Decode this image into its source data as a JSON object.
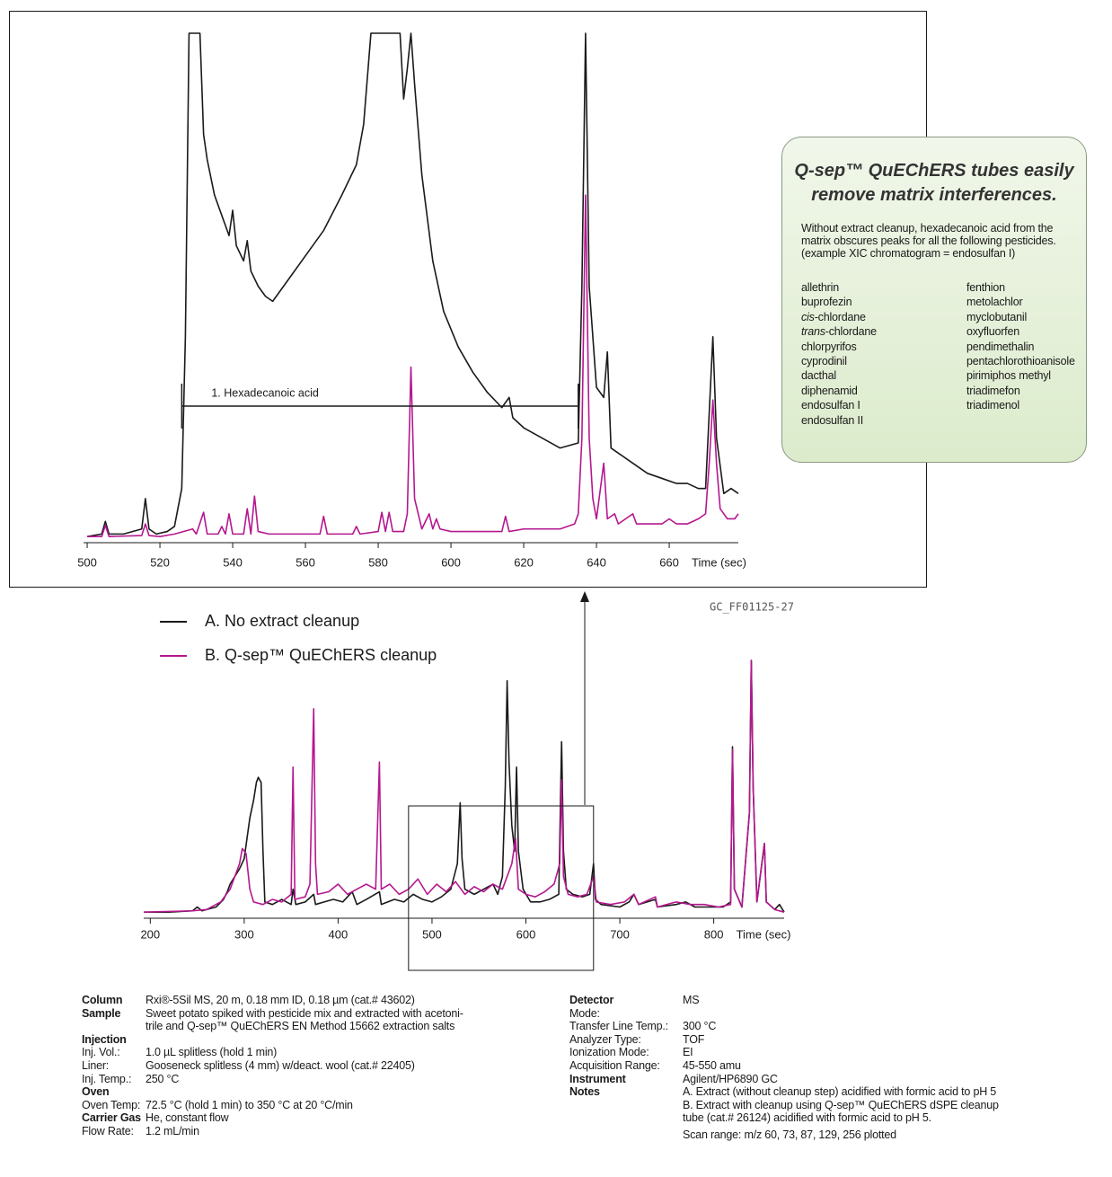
{
  "chart_data": [
    {
      "type": "line",
      "xlabel": "Time (sec)",
      "xlim": [
        499,
        679
      ],
      "xticks": [
        500,
        520,
        540,
        560,
        580,
        600,
        620,
        640,
        660
      ],
      "ylim": [
        0,
        100
      ],
      "annotation": {
        "text": "1. Hexadecanoic acid",
        "from": 526,
        "to": 635
      },
      "series": [
        {
          "name": "A. No extract cleanup",
          "color": "#1a1a1a",
          "x": [
            500,
            504,
            505,
            506,
            510,
            515,
            516,
            517,
            519,
            522,
            524,
            526,
            527,
            528,
            531,
            532,
            533,
            535,
            537,
            539,
            540,
            541,
            543,
            544,
            545,
            547,
            549,
            551,
            553,
            556,
            560,
            565,
            570,
            574,
            576,
            578,
            586,
            587,
            588,
            589,
            590,
            592,
            595,
            598,
            602,
            606,
            610,
            614,
            616,
            617,
            620,
            625,
            630,
            635,
            636,
            637,
            638,
            640,
            642,
            643,
            644,
            646,
            650,
            654,
            658,
            662,
            665,
            668,
            670,
            672,
            673,
            675,
            677,
            679
          ],
          "values": [
            0.5,
            1,
            3.5,
            1,
            1,
            2,
            8,
            2,
            1,
            1.5,
            2.5,
            10,
            40,
            100,
            100,
            80,
            75,
            68,
            64,
            60,
            65,
            58,
            55,
            59,
            53,
            50,
            48,
            47,
            49,
            52,
            56,
            61,
            68,
            74,
            82,
            100,
            100,
            87,
            93,
            100,
            90,
            72,
            55,
            45,
            38,
            33,
            29,
            26,
            28,
            24,
            22,
            20,
            18,
            19,
            50,
            100,
            50,
            30,
            28,
            37,
            18,
            17,
            15,
            13,
            12,
            11,
            11,
            10,
            10,
            40,
            20,
            9,
            10,
            9
          ]
        },
        {
          "name": "B. Q-sep™ QuEChERS cleanup",
          "color": "#b5178f",
          "x": [
            500,
            504,
            505,
            506,
            515,
            516,
            517,
            520,
            524,
            529,
            530,
            532,
            533,
            536,
            537,
            538,
            539,
            540,
            543,
            544,
            545,
            546,
            547,
            550,
            555,
            560,
            564,
            565,
            566,
            570,
            573,
            574,
            575,
            580,
            581,
            582,
            583,
            584,
            587,
            588,
            589,
            590,
            592,
            594,
            595,
            596,
            597,
            600,
            605,
            610,
            614,
            615,
            616,
            620,
            625,
            630,
            634,
            635,
            636,
            637,
            638,
            639,
            640,
            642,
            643,
            645,
            646,
            648,
            650,
            651,
            655,
            658,
            660,
            662,
            665,
            668,
            670,
            671,
            672,
            673,
            674,
            676,
            678,
            679
          ],
          "values": [
            0.5,
            0.5,
            2.7,
            0.5,
            0.7,
            3,
            0.7,
            0.5,
            1,
            2,
            1,
            5.3,
            1,
            1,
            2.5,
            1,
            5,
            1,
            1,
            6,
            1,
            8.5,
            1.5,
            1,
            1,
            1,
            1,
            4.5,
            1,
            1,
            1,
            2.5,
            1,
            1.5,
            5.3,
            1.5,
            5.3,
            1.5,
            1.5,
            5,
            34,
            8,
            2,
            5,
            2,
            4,
            2,
            1.5,
            1.5,
            1.5,
            1.5,
            4.5,
            1.5,
            2,
            2,
            2,
            3,
            5,
            20,
            68,
            20,
            8,
            4,
            15,
            4,
            5,
            3,
            4,
            5,
            3,
            3,
            3,
            4,
            3,
            3,
            4,
            5,
            15,
            27.5,
            15,
            6,
            4,
            4,
            5
          ]
        }
      ]
    },
    {
      "type": "line",
      "xlabel": "Time (sec)",
      "xlim": [
        193,
        875
      ],
      "xticks": [
        200,
        300,
        400,
        500,
        600,
        700,
        800
      ],
      "ylim": [
        0,
        100
      ],
      "zoom_box": [
        475,
        672
      ],
      "legend": "top-left",
      "series": [
        {
          "name": "A. No extract cleanup",
          "color": "#1a1a1a",
          "x": [
            193,
            220,
            245,
            250,
            255,
            270,
            278,
            282,
            285,
            290,
            295,
            300,
            303,
            306,
            310,
            313,
            315,
            318,
            320,
            322,
            330,
            340,
            350,
            352,
            355,
            365,
            374,
            376,
            385,
            395,
            405,
            415,
            420,
            430,
            444,
            446,
            460,
            470,
            480,
            490,
            500,
            510,
            520,
            527,
            530,
            532,
            535,
            545,
            555,
            565,
            570,
            575,
            578,
            580,
            582,
            585,
            588,
            590,
            592,
            597,
            605,
            615,
            625,
            635,
            638,
            640,
            643,
            650,
            660,
            668,
            672,
            674,
            680,
            700,
            710,
            715,
            720,
            738,
            740,
            760,
            770,
            780,
            800,
            810,
            818,
            820,
            822,
            830,
            838,
            840,
            842,
            846,
            854,
            856,
            865,
            870,
            875
          ],
          "values": [
            1,
            1,
            1.5,
            3,
            1.5,
            3,
            6,
            9,
            12,
            15,
            18,
            22,
            30,
            38,
            45,
            52,
            54,
            52,
            25,
            5,
            4,
            6,
            4,
            10,
            4,
            5,
            8,
            4,
            5,
            6,
            5,
            9,
            4,
            6,
            9,
            4,
            6,
            5,
            8,
            6,
            5,
            7,
            10,
            20,
            44,
            22,
            10,
            8,
            10,
            12,
            8,
            15,
            50,
            92,
            60,
            35,
            25,
            58,
            25,
            10,
            5,
            5,
            6,
            8,
            68,
            25,
            10,
            8,
            7,
            8,
            20,
            6,
            4,
            3,
            5,
            8,
            4,
            6,
            3,
            4,
            5,
            3,
            3,
            3,
            5,
            66,
            10,
            3,
            40,
            100,
            50,
            5,
            28,
            5,
            2,
            4,
            1
          ]
        },
        {
          "name": "B. Q-sep™ QuEChERS cleanup",
          "color": "#b5178f",
          "x": [
            193,
            245,
            260,
            275,
            285,
            295,
            298,
            302,
            306,
            310,
            320,
            330,
            340,
            350,
            352,
            354,
            365,
            370,
            374,
            376,
            378,
            390,
            400,
            410,
            420,
            430,
            440,
            444,
            446,
            455,
            465,
            475,
            485,
            495,
            505,
            515,
            525,
            535,
            545,
            555,
            565,
            575,
            585,
            589,
            592,
            600,
            610,
            620,
            630,
            636,
            638,
            640,
            645,
            655,
            665,
            672,
            675,
            690,
            705,
            715,
            720,
            738,
            740,
            760,
            775,
            790,
            805,
            818,
            820,
            822,
            830,
            838,
            840,
            842,
            846,
            854,
            856,
            865,
            875
          ],
          "values": [
            1,
            1.5,
            2,
            5,
            10,
            20,
            26,
            24,
            10,
            5,
            4,
            6,
            5,
            8,
            58,
            6,
            7,
            12,
            81,
            20,
            8,
            9,
            12,
            8,
            10,
            12,
            10,
            60,
            10,
            12,
            8,
            10,
            14,
            8,
            12,
            9,
            13,
            8,
            11,
            9,
            12,
            10,
            20,
            30,
            10,
            8,
            7,
            9,
            12,
            20,
            53,
            15,
            8,
            7,
            8,
            15,
            5,
            4,
            5,
            8,
            4,
            7,
            3,
            5,
            4,
            4,
            3,
            4,
            65,
            10,
            3,
            40,
            100,
            50,
            5,
            28,
            5,
            2,
            1
          ]
        }
      ]
    }
  ],
  "figure_id": "GC_FF01125-27",
  "callout": {
    "title": "Q-sep™ QuEChERS tubes easily remove matrix interferences.",
    "intro": "Without extract cleanup, hexadecanoic acid from the matrix obscures peaks for all the following pesticides. (example XIC chromatogram = endosulfan I)",
    "columns": [
      [
        "allethrin",
        "buprofezin",
        {
          "italic": "cis",
          "text": "-chlordane"
        },
        {
          "italic": "trans",
          "text": "-chlordane"
        },
        "chlorpyrifos",
        "cyprodinil",
        "dacthal",
        "diphenamid",
        "endosulfan I",
        "endosulfan II"
      ],
      [
        "fenthion",
        "metolachlor",
        "myclobutanil",
        "oxyfluorfen",
        "pendimethalin",
        "pentachlorothioanisole",
        "pirimiphos methyl",
        "triadimefon",
        "triadimenol"
      ]
    ]
  },
  "conditions": {
    "left": [
      {
        "label": "Column",
        "heading": true,
        "value": [
          "Rxi®-5Sil MS, 20 m, 0.18 mm ID, 0.18 µm (cat.# 43602)"
        ]
      },
      {
        "label": "Sample",
        "heading": true,
        "value": [
          "Sweet potato spiked with pesticide mix and extracted with acetoni-",
          "trile and Q-sep™ QuEChERS EN Method 15662 extraction salts"
        ]
      },
      {
        "label": "Injection",
        "heading": true
      },
      {
        "label": "Inj. Vol.:",
        "value": [
          "1.0 µL splitless (hold 1 min)"
        ]
      },
      {
        "label": "Liner:",
        "value": [
          "Gooseneck splitless (4 mm) w/deact. wool (cat.# 22405)"
        ]
      },
      {
        "label": "Inj. Temp.:",
        "value": [
          "250 °C"
        ]
      },
      {
        "label": "Oven",
        "heading": true
      },
      {
        "label": "Oven Temp:",
        "value": [
          "72.5 °C (hold 1 min) to 350 °C at 20 °C/min"
        ]
      },
      {
        "label": "Carrier Gas",
        "heading": true,
        "value": [
          "He, constant flow"
        ]
      },
      {
        "label": "Flow Rate:",
        "value": [
          "1.2 mL/min"
        ]
      }
    ],
    "right": [
      {
        "label": "Detector",
        "heading": true,
        "value": [
          "MS"
        ]
      },
      {
        "label": "Mode:"
      },
      {
        "label": "Transfer Line Temp.:",
        "value": [
          "300 °C"
        ]
      },
      {
        "label": "Analyzer Type:",
        "value": [
          "TOF"
        ]
      },
      {
        "label": "Ionization Mode:",
        "value": [
          "EI"
        ]
      },
      {
        "label": "Acquisition Range:",
        "value": [
          "45-550 amu"
        ]
      },
      {
        "label": "Instrument",
        "heading": true,
        "value": [
          "Agilent/HP6890 GC"
        ]
      },
      {
        "label": "Notes",
        "heading": true,
        "value": [
          "A. Extract (without cleanup step) acidified with formic acid to pH 5",
          "B. Extract with cleanup using Q-sep™ QuEChERS dSPE cleanup",
          "tube (cat.# 26124) acidified with formic acid to pH 5.",
          "Scan range: m/z 60, 73, 87, 129, 256 plotted"
        ]
      }
    ]
  }
}
